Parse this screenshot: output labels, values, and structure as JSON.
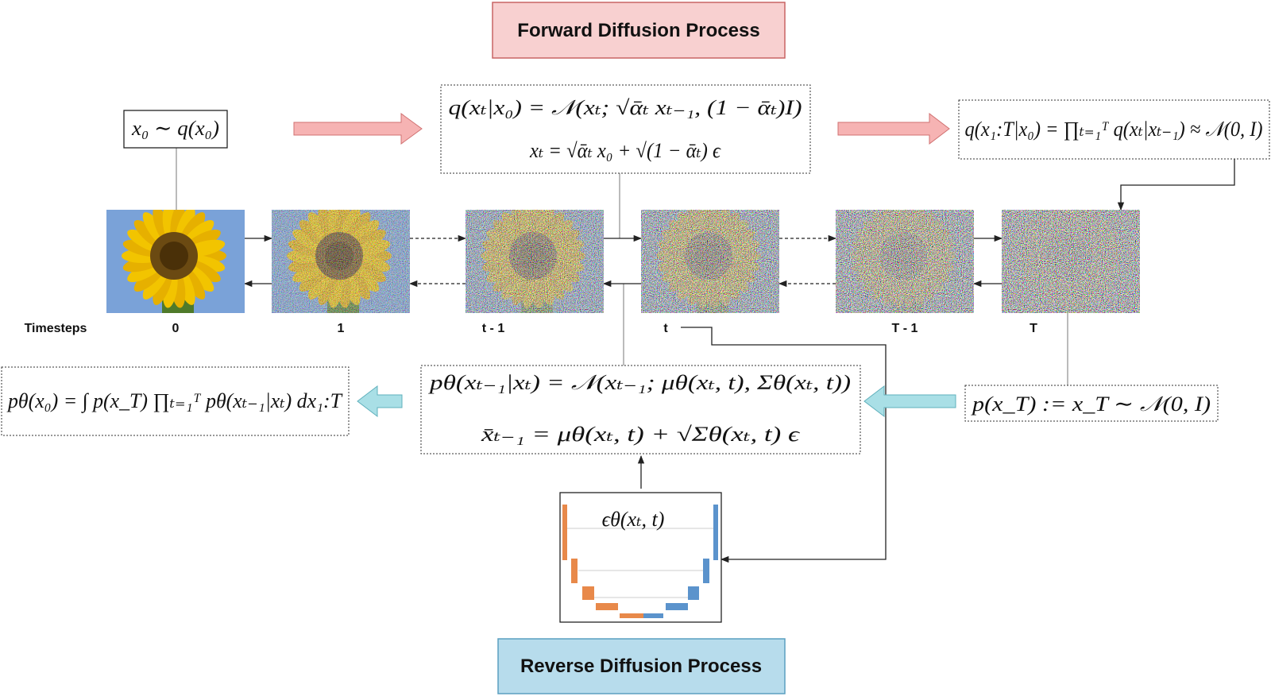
{
  "header": {
    "forward_title": "Forward Diffusion Process",
    "reverse_title": "Reverse Diffusion Process"
  },
  "formulas": {
    "prior": "x₀ ∼ q(x₀)",
    "forward": [
      "q(xₜ|x₀) = 𝒩(xₜ; √ᾱₜ xₜ₋₁, (1 − ᾱₜ)I)",
      "xₜ = √ᾱₜ x₀ + √(1 − ᾱₜ) ϵ"
    ],
    "joint": "q(x₁:T|x₀) = ∏ₜ₌₁ᵀ q(xₜ|xₜ₋₁) ≈ 𝒩(0, I)",
    "reverse": [
      "pθ(xₜ₋₁|xₜ) = 𝒩(xₜ₋₁; μθ(xₜ, t), Σθ(xₜ, t))",
      "x̄ₜ₋₁ = μθ(xₜ, t) + √Σθ(xₜ, t) ϵ"
    ],
    "marginal": "pθ(x₀) = ∫ p(x_T) ∏ₜ₌₁ᵀ pθ(xₜ₋₁|xₜ) dx₁:T",
    "noise_prior": "p(x_T) := x_T ∼ 𝒩(0, I)"
  },
  "timesteps": {
    "label": "Timesteps",
    "steps": [
      "0",
      "1",
      "t - 1",
      "t",
      "T - 1",
      "T"
    ]
  },
  "network": {
    "label": "ϵθ(xₜ, t)"
  }
}
